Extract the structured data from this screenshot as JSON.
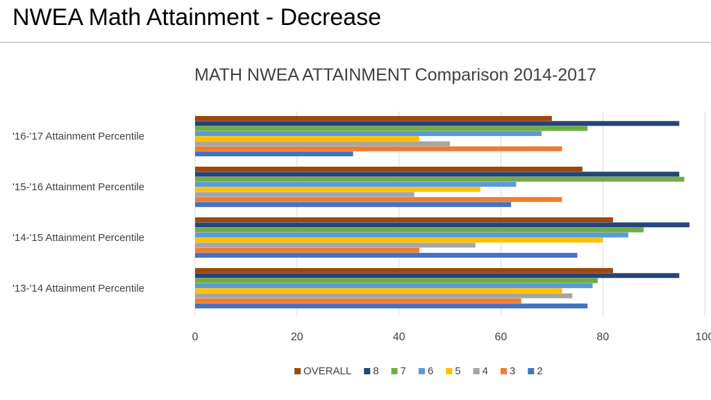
{
  "slide": {
    "title": "NWEA Math Attainment - Decrease"
  },
  "chart_data": {
    "type": "bar",
    "orientation": "horizontal",
    "title": "MATH NWEA ATTAINMENT Comparison  2014-2017",
    "xlabel": "",
    "ylabel": "",
    "xlim": [
      0,
      100
    ],
    "x_ticks": [
      0,
      20,
      40,
      60,
      80,
      100
    ],
    "x_tick_labels": [
      "0",
      "20",
      "40",
      "60",
      "80",
      "100"
    ],
    "grid": true,
    "legend_position": "bottom",
    "categories": [
      "'16-'17 Attainment Percentile",
      "'15-'16 Attainment Percentile",
      "'14-'15 Attainment Percentile",
      "'13-'14 Attainment Percentile"
    ],
    "series": [
      {
        "name": "OVERALL",
        "color": "#9e480e",
        "values": [
          70,
          76,
          82,
          82
        ]
      },
      {
        "name": "8",
        "color": "#264478",
        "values": [
          95,
          95,
          97,
          95
        ]
      },
      {
        "name": "7",
        "color": "#70ad47",
        "values": [
          77,
          96,
          88,
          79
        ]
      },
      {
        "name": "6",
        "color": "#5b9bd5",
        "values": [
          68,
          63,
          85,
          78
        ]
      },
      {
        "name": "5",
        "color": "#ffc000",
        "values": [
          44,
          56,
          80,
          72
        ]
      },
      {
        "name": "4",
        "color": "#a5a5a5",
        "values": [
          50,
          43,
          55,
          74
        ]
      },
      {
        "name": "3",
        "color": "#ed7d31",
        "values": [
          72,
          72,
          44,
          64
        ]
      },
      {
        "name": "2",
        "color": "#4472c4",
        "values": [
          31,
          62,
          75,
          77
        ]
      }
    ]
  }
}
